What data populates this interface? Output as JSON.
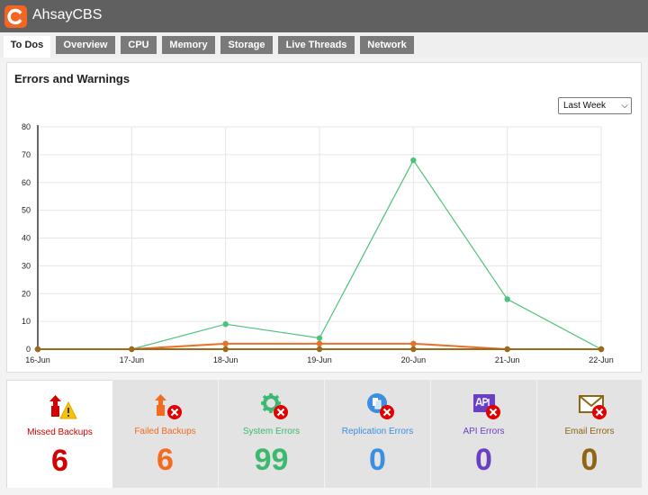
{
  "app": {
    "title": "AhsayCBS",
    "logo_icon": "ahsay-logo-icon"
  },
  "tabs": [
    {
      "label": "To Dos",
      "active": true
    },
    {
      "label": "Overview"
    },
    {
      "label": "CPU"
    },
    {
      "label": "Memory"
    },
    {
      "label": "Storage"
    },
    {
      "label": "Live Threads"
    },
    {
      "label": "Network"
    }
  ],
  "panel": {
    "title": "Errors and Warnings",
    "range": "Last Week",
    "range_options": [
      "Last Week"
    ]
  },
  "chart_data": {
    "type": "line",
    "x": [
      "16-Jun",
      "17-Jun",
      "18-Jun",
      "19-Jun",
      "20-Jun",
      "21-Jun",
      "22-Jun"
    ],
    "ylim": [
      0,
      80
    ],
    "yticks": [
      0,
      10,
      20,
      30,
      40,
      50,
      60,
      70,
      80
    ],
    "grid": true,
    "series": [
      {
        "color": "#4cc37a",
        "values": [
          0,
          0,
          9,
          4,
          68,
          18,
          0
        ]
      },
      {
        "color": "#e8712a",
        "values": [
          0,
          0,
          2,
          2,
          2,
          0,
          0
        ]
      },
      {
        "color": "#9b6a1d",
        "values": [
          0,
          0,
          0,
          0,
          0,
          0,
          0
        ]
      }
    ]
  },
  "cards": [
    {
      "label": "Missed Backups",
      "count": "6",
      "color": "#d40000",
      "icon": "missed-backup-warning-icon",
      "selected": true
    },
    {
      "label": "Failed Backups",
      "count": "6",
      "color": "#f26b21",
      "icon": "failed-backup-icon"
    },
    {
      "label": "System Errors",
      "count": "99",
      "color": "#3cb96f",
      "icon": "system-gear-error-icon"
    },
    {
      "label": "Replication Errors",
      "count": "0",
      "color": "#3b8ee0",
      "icon": "replication-error-icon"
    },
    {
      "label": "API Errors",
      "count": "0",
      "color": "#6b3fc4",
      "icon": "api-error-icon"
    },
    {
      "label": "Email Errors",
      "count": "0",
      "color": "#8f6513",
      "icon": "email-error-icon"
    }
  ]
}
